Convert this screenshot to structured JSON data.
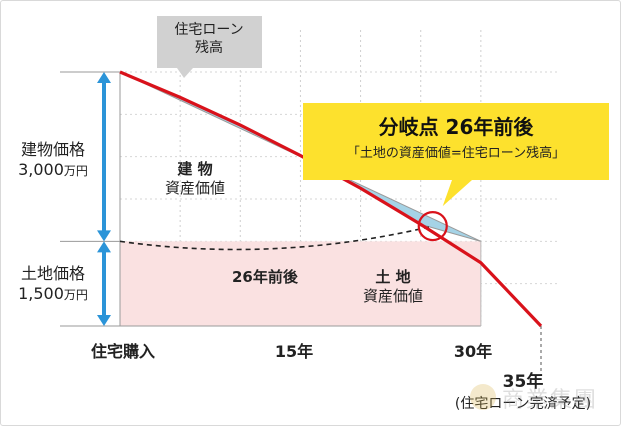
{
  "chart_data": {
    "type": "line",
    "x_ticks": [
      "住宅購入",
      "15年",
      "30年"
    ],
    "x_end": {
      "year": "35年",
      "note": "(住宅ローン完済予定)"
    },
    "xlim": [
      0,
      35
    ],
    "ylim": [
      0,
      4500
    ],
    "y_axis_unit": "万円",
    "series": [
      {
        "name": "住宅ローン残高",
        "x": [
          0,
          5,
          10,
          15,
          20,
          25,
          30,
          35
        ],
        "values": [
          4500,
          4050,
          3560,
          3020,
          2440,
          1800,
          1120,
          0
        ]
      },
      {
        "name": "資産価値",
        "x": [
          0,
          30
        ],
        "values": [
          4500,
          1500
        ]
      }
    ],
    "land_value": 1500,
    "building_value": 3000,
    "crossover_year": 26,
    "colors": {
      "loan_line": "#d9121b",
      "building_fill": "#a5d3e6",
      "land_fill": "#fae1e1",
      "arrow": "#2b94d8",
      "callout_bg": "#fde12d",
      "bubble_bg": "#d1d1d1"
    }
  },
  "labels": {
    "loan_bubble": [
      "住宅ローン",
      "残高"
    ],
    "building_price": {
      "title": "建物価格",
      "value": "3,000",
      "unit": "万円"
    },
    "land_price": {
      "title": "土地価格",
      "value": "1,500",
      "unit": "万円"
    },
    "building_region": [
      "建 物",
      "資産価値"
    ],
    "land_region": [
      "土 地",
      "資産価値"
    ],
    "dashed_label": "26年前後",
    "callout_title": "分岐点 26年前後",
    "callout_sub": "「土地の資産価値=住宅ローン残高」"
  },
  "watermark": "商業集團"
}
